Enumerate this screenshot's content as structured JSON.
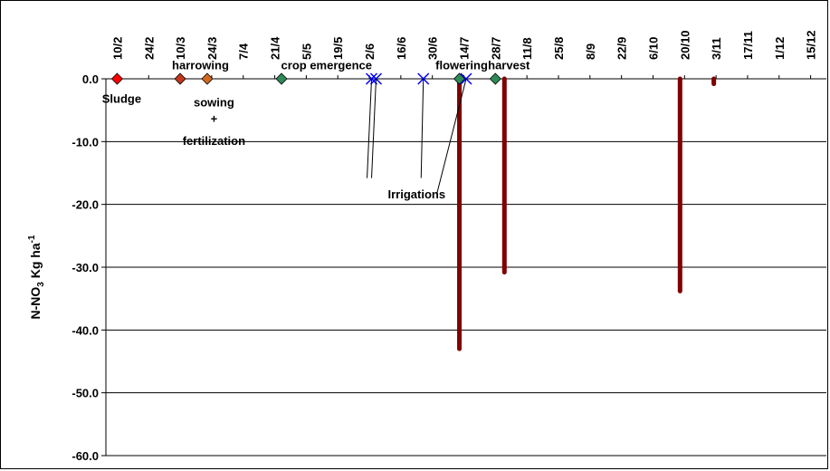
{
  "chart_data": {
    "type": "scatter",
    "ylabel": {
      "main": "N-NO",
      "sub": "3",
      "unit": " Kg ha",
      "sup": "-1"
    },
    "ylim": [
      -60,
      0
    ],
    "y_ticks": [
      {
        "value": 0,
        "label": "0.0"
      },
      {
        "value": -10,
        "label": "-10.0"
      },
      {
        "value": -20,
        "label": "-20.0"
      },
      {
        "value": -30,
        "label": "-30.0"
      },
      {
        "value": -40,
        "label": "-40.0"
      },
      {
        "value": -50,
        "label": "-50.0"
      },
      {
        "value": -60,
        "label": "-60.0"
      }
    ],
    "grid": "horizontal",
    "x_ticks": [
      {
        "day": 41,
        "label": "10/2"
      },
      {
        "day": 55,
        "label": "24/2"
      },
      {
        "day": 69,
        "label": "10/3"
      },
      {
        "day": 83,
        "label": "24/3"
      },
      {
        "day": 97,
        "label": "7/4"
      },
      {
        "day": 111,
        "label": "21/4"
      },
      {
        "day": 125,
        "label": "5/5"
      },
      {
        "day": 139,
        "label": "19/5"
      },
      {
        "day": 153,
        "label": "2/6"
      },
      {
        "day": 167,
        "label": "16/6"
      },
      {
        "day": 181,
        "label": "30/6"
      },
      {
        "day": 195,
        "label": "14/7"
      },
      {
        "day": 209,
        "label": "28/7"
      },
      {
        "day": 223,
        "label": "11/8"
      },
      {
        "day": 237,
        "label": "25/8"
      },
      {
        "day": 251,
        "label": "8/9"
      },
      {
        "day": 265,
        "label": "22/9"
      },
      {
        "day": 279,
        "label": "6/10"
      },
      {
        "day": 293,
        "label": "20/10"
      },
      {
        "day": 307,
        "label": "3/11"
      },
      {
        "day": 321,
        "label": "17/11"
      },
      {
        "day": 335,
        "label": "1/12"
      },
      {
        "day": 349,
        "label": "15/12"
      }
    ],
    "xlim": [
      36,
      356
    ],
    "series": [
      {
        "marker": "bar",
        "color": "#7f0000",
        "points": [
          {
            "day": 193,
            "y": -43
          },
          {
            "day": 213,
            "y": -30.8
          },
          {
            "day": 291,
            "y": -33.8
          },
          {
            "day": 306,
            "y": -0.8
          }
        ]
      },
      {
        "marker": "diamond",
        "color": "#ff0000",
        "points": [
          {
            "day": 41,
            "y": 0
          }
        ]
      },
      {
        "marker": "diamond",
        "color": "#c0381e",
        "points": [
          {
            "day": 69,
            "y": 0
          }
        ]
      },
      {
        "marker": "diamond",
        "color": "#d2691e",
        "points": [
          {
            "day": 81,
            "y": 0
          }
        ]
      },
      {
        "marker": "diamond",
        "color": "#2e8b57",
        "points": [
          {
            "day": 114,
            "y": 0
          },
          {
            "day": 193,
            "y": 0
          },
          {
            "day": 209,
            "y": 0
          }
        ]
      },
      {
        "marker": "x",
        "color": "#0000ff",
        "points": [
          {
            "day": 154,
            "y": 0
          },
          {
            "day": 156,
            "y": 0
          },
          {
            "day": 177,
            "y": 0
          },
          {
            "day": 196,
            "y": 0
          }
        ]
      }
    ],
    "annotations": [
      {
        "text": "Sludge",
        "day": 43,
        "y": -3.1
      },
      {
        "text": "harrowing",
        "day": 78,
        "y": 2.2
      },
      {
        "text": "sowing",
        "day": 84,
        "y": -3.7
      },
      {
        "text": "+",
        "day": 84,
        "y": -6.3
      },
      {
        "text": "fertilization",
        "day": 84,
        "y": -9.8
      },
      {
        "text": "crop emergence",
        "day": 134,
        "y": 2.2
      },
      {
        "text": "flowering",
        "day": 194,
        "y": 2.2
      },
      {
        "text": "harvest",
        "day": 215,
        "y": 2.2
      },
      {
        "text": "Irrigations",
        "day": 174,
        "y": -18.3
      }
    ],
    "leaders": [
      {
        "from": {
          "day": 152,
          "y": -15.8
        },
        "to": {
          "day": 154,
          "y": 0
        }
      },
      {
        "from": {
          "day": 154,
          "y": -15.8
        },
        "to": {
          "day": 156,
          "y": 0
        }
      },
      {
        "from": {
          "day": 176,
          "y": -15.8
        },
        "to": {
          "day": 177,
          "y": 0
        }
      },
      {
        "from": {
          "day": 183,
          "y": -18.3
        },
        "to": {
          "day": 196,
          "y": 0
        }
      }
    ]
  }
}
